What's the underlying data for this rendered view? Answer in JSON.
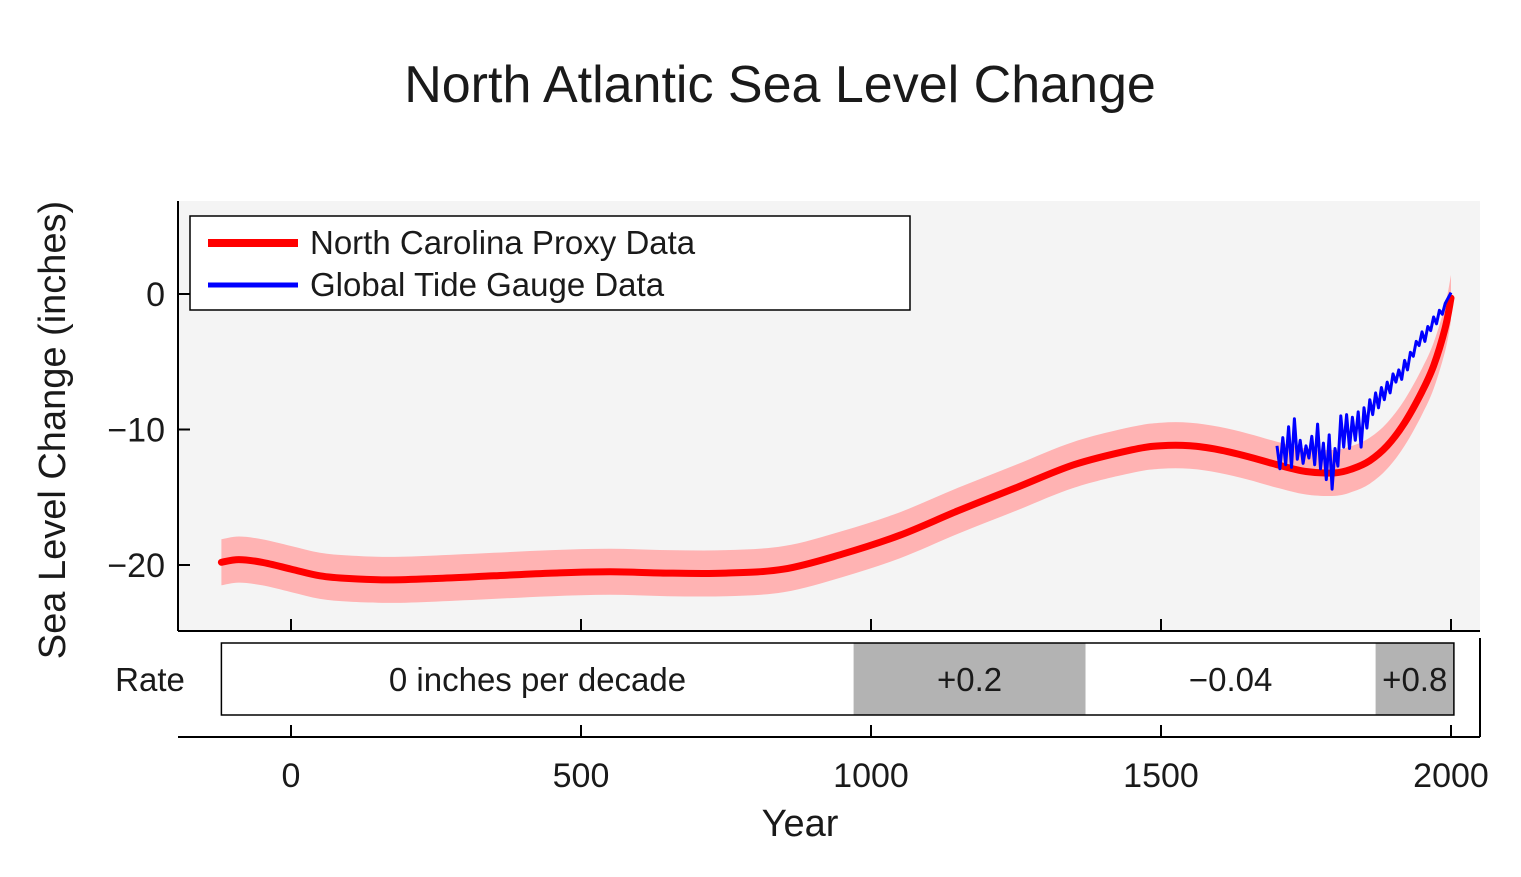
{
  "chart_data": {
    "type": "line",
    "title": "North Atlantic Sea Level Change",
    "xlabel": "Year",
    "ylabel": "Sea Level Change (inches)",
    "xlim": [
      -200,
      2010
    ],
    "ylim": [
      -25,
      7
    ],
    "x_ticks": [
      0,
      500,
      1000,
      1500,
      2000
    ],
    "x_tick_labels": [
      "0",
      "500",
      "1000",
      "1500",
      "2000"
    ],
    "y_ticks": [
      0,
      -10,
      -20
    ],
    "y_tick_labels": [
      "0",
      "−10",
      "−20"
    ],
    "legend_position": "top-left",
    "series": [
      {
        "name": "North Carolina Proxy Data",
        "color": "#ff0000",
        "band_color": "#ffb3b3",
        "band_halfwidth": 1.7,
        "x": [
          -120,
          -90,
          -50,
          0,
          50,
          100,
          170,
          250,
          350,
          450,
          550,
          650,
          750,
          850,
          950,
          1050,
          1150,
          1250,
          1350,
          1450,
          1500,
          1550,
          1600,
          1650,
          1700,
          1750,
          1800,
          1830,
          1860,
          1890,
          1920,
          1950,
          1970,
          1990,
          2000
        ],
        "y": [
          -19.8,
          -19.6,
          -19.8,
          -20.3,
          -20.8,
          -21.0,
          -21.1,
          -21.0,
          -20.8,
          -20.6,
          -20.5,
          -20.6,
          -20.6,
          -20.3,
          -19.2,
          -17.8,
          -16.0,
          -14.3,
          -12.6,
          -11.5,
          -11.2,
          -11.2,
          -11.5,
          -12.0,
          -12.6,
          -13.1,
          -13.2,
          -12.9,
          -12.3,
          -11.2,
          -9.5,
          -7.2,
          -5.3,
          -2.5,
          -0.3
        ]
      },
      {
        "name": "Global Tide Gauge Data",
        "color": "#0000ff",
        "x": [
          1700,
          1705,
          1710,
          1715,
          1720,
          1725,
          1730,
          1735,
          1740,
          1745,
          1750,
          1755,
          1760,
          1765,
          1770,
          1775,
          1780,
          1785,
          1790,
          1795,
          1800,
          1805,
          1810,
          1815,
          1820,
          1825,
          1830,
          1835,
          1840,
          1845,
          1850,
          1855,
          1860,
          1865,
          1870,
          1875,
          1880,
          1885,
          1890,
          1895,
          1900,
          1905,
          1910,
          1915,
          1920,
          1925,
          1930,
          1935,
          1940,
          1945,
          1950,
          1955,
          1960,
          1965,
          1970,
          1975,
          1980,
          1985,
          1990,
          1995,
          2000
        ],
        "y": [
          -11.2,
          -12.9,
          -10.6,
          -12.6,
          -9.8,
          -12.8,
          -9.2,
          -12.2,
          -10.8,
          -12.5,
          -11.2,
          -12.1,
          -10.5,
          -12.6,
          -9.6,
          -12.9,
          -11.0,
          -13.7,
          -10.4,
          -14.4,
          -11.4,
          -12.7,
          -9.0,
          -11.3,
          -8.9,
          -11.4,
          -9.1,
          -10.8,
          -8.7,
          -11.3,
          -8.4,
          -9.9,
          -7.8,
          -8.9,
          -7.3,
          -8.4,
          -6.9,
          -7.8,
          -6.5,
          -7.3,
          -5.9,
          -6.5,
          -5.6,
          -6.3,
          -4.9,
          -5.6,
          -4.3,
          -4.6,
          -3.5,
          -3.8,
          -2.8,
          -3.5,
          -2.4,
          -2.7,
          -1.7,
          -2.2,
          -1.2,
          -1.5,
          -0.7,
          -0.3,
          0.1
        ]
      }
    ],
    "rate_panel": {
      "label": "Rate",
      "segments": [
        {
          "start": -120,
          "end": 970,
          "label": "0 inches per decade",
          "shaded": false
        },
        {
          "start": 970,
          "end": 1370,
          "label": "+0.2",
          "shaded": true
        },
        {
          "start": 1370,
          "end": 1870,
          "label": "−0.04",
          "shaded": false
        },
        {
          "start": 1870,
          "end": 2005,
          "label": "+0.8",
          "shaded": true
        }
      ]
    }
  }
}
